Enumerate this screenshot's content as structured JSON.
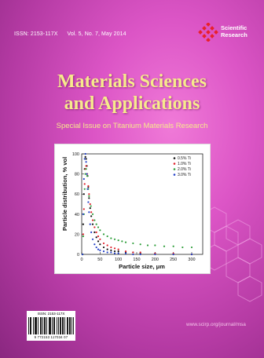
{
  "journal": {
    "issn": "ISSN: 2153-117X",
    "volume_info": "Vol. 5, No. 7, May 2014",
    "title_line1": "Materials Sciences",
    "title_line2": "and Applications",
    "subtitle": "Special Issue on Titanium Materials Research",
    "website": "www.scirp.org/journal/msa"
  },
  "publisher": {
    "name_line1": "Scientific",
    "name_line2": "Research"
  },
  "barcode": {
    "issn_label": "ISSN: 2153-117X",
    "digits": "9  772153  117034  07"
  },
  "colors": {
    "accent_title": "#f7ea8c",
    "logo_red": "#e8202a",
    "background": "#c84bb6"
  },
  "chart_data": {
    "type": "scatter",
    "title": "",
    "xlabel": "Particle size, μm",
    "ylabel": "Particle distribution, % vol",
    "xlim": [
      0,
      330
    ],
    "ylim": [
      0,
      100
    ],
    "x_ticks": [
      0,
      50,
      100,
      150,
      200,
      250,
      300
    ],
    "y_ticks": [
      0,
      20,
      40,
      60,
      80,
      100
    ],
    "grid": false,
    "legend_position": "top-right",
    "series": [
      {
        "name": "0.5% Ti",
        "color": "#111111",
        "x": [
          2,
          4,
          6,
          8,
          10,
          12,
          14,
          16,
          18,
          20,
          23,
          26,
          30,
          35,
          40,
          45,
          50,
          60,
          70,
          80,
          90,
          100,
          120,
          140,
          160,
          200,
          250,
          300
        ],
        "y": [
          0,
          30,
          60,
          85,
          97,
          95,
          88,
          78,
          67,
          56,
          46,
          38,
          30,
          22,
          17,
          13,
          10,
          7,
          5,
          4,
          3,
          3,
          2,
          2,
          1,
          1,
          0,
          0
        ]
      },
      {
        "name": "1.0% Ti",
        "color": "#e0202a",
        "x": [
          2,
          4,
          6,
          8,
          10,
          12,
          15,
          18,
          20,
          23,
          26,
          30,
          35,
          40,
          45,
          50,
          60,
          70,
          80,
          90,
          100,
          120,
          140,
          160,
          200,
          250,
          300
        ],
        "y": [
          0,
          20,
          45,
          70,
          85,
          88,
          80,
          68,
          60,
          50,
          42,
          34,
          27,
          22,
          18,
          15,
          11,
          9,
          7,
          6,
          5,
          3,
          2,
          2,
          1,
          1,
          0
        ]
      },
      {
        "name": "2.0% Ti",
        "color": "#2e9e3a",
        "x": [
          2,
          4,
          6,
          8,
          10,
          12,
          15,
          18,
          20,
          25,
          30,
          35,
          40,
          45,
          50,
          60,
          70,
          80,
          90,
          100,
          110,
          120,
          140,
          160,
          180,
          200,
          225,
          250,
          275,
          300
        ],
        "y": [
          0,
          18,
          40,
          65,
          80,
          85,
          78,
          65,
          58,
          48,
          40,
          34,
          30,
          27,
          24,
          20,
          18,
          16,
          15,
          14,
          13,
          12,
          11,
          10,
          9,
          9,
          8,
          8,
          7,
          7
        ]
      },
      {
        "name": "3.0% Ti",
        "color": "#2340c8",
        "x": [
          2,
          4,
          6,
          8,
          10,
          12,
          14,
          16,
          18,
          20,
          23,
          26,
          30,
          35,
          40,
          45,
          50,
          60,
          70,
          80,
          90,
          100,
          120,
          140,
          160,
          200,
          250,
          300
        ],
        "y": [
          0,
          40,
          75,
          95,
          100,
          92,
          80,
          65,
          52,
          42,
          30,
          22,
          15,
          10,
          7,
          5,
          4,
          3,
          2,
          2,
          1,
          1,
          1,
          0,
          0,
          0,
          0,
          0
        ]
      }
    ]
  }
}
